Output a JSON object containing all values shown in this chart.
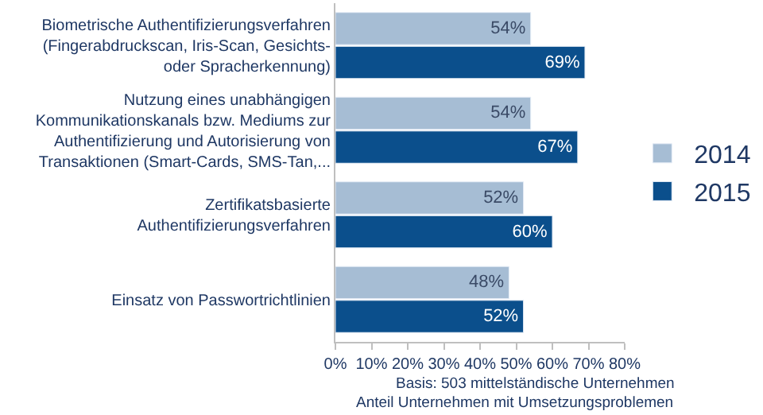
{
  "chart_data": {
    "type": "bar",
    "orientation": "horizontal",
    "categories": [
      "Biometrische Authentifizierungsverfahren\n(Fingerabdruckscan, Iris-Scan, Gesichts-\noder Spracherkennung)",
      "Nutzung eines unabhängigen\nKommunikationskanals bzw. Mediums zur\nAuthentifizierung und Autorisierung von\nTransaktionen (Smart-Cards, SMS-Tan,...",
      "Zertifikatsbasierte\nAuthentifizierungsverfahren",
      "Einsatz von Passwortrichtlinien"
    ],
    "series": [
      {
        "name": "2014",
        "color": "#a6bdd4",
        "values": [
          54,
          54,
          52,
          48
        ]
      },
      {
        "name": "2015",
        "color": "#0b4f8c",
        "values": [
          69,
          67,
          60,
          52
        ]
      }
    ],
    "xlim": [
      0,
      80
    ],
    "xticks": [
      {
        "value": 0,
        "label": "0%"
      },
      {
        "value": 10,
        "label": "10%"
      },
      {
        "value": 20,
        "label": "20%"
      },
      {
        "value": 30,
        "label": "30%"
      },
      {
        "value": 40,
        "label": "40%"
      },
      {
        "value": 50,
        "label": "50%"
      },
      {
        "value": 60,
        "label": "60%"
      },
      {
        "value": 70,
        "label": "70%"
      },
      {
        "value": 80,
        "label": "80%"
      }
    ],
    "value_labels": [
      [
        "54%",
        "54%",
        "52%",
        "48%"
      ],
      [
        "69%",
        "67%",
        "60%",
        "52%"
      ]
    ],
    "annotations": [
      "Basis: 503 mittelständische Unternehmen",
      "Anteil Unternehmen mit Umsetzungsproblemen"
    ],
    "legend": "right"
  }
}
